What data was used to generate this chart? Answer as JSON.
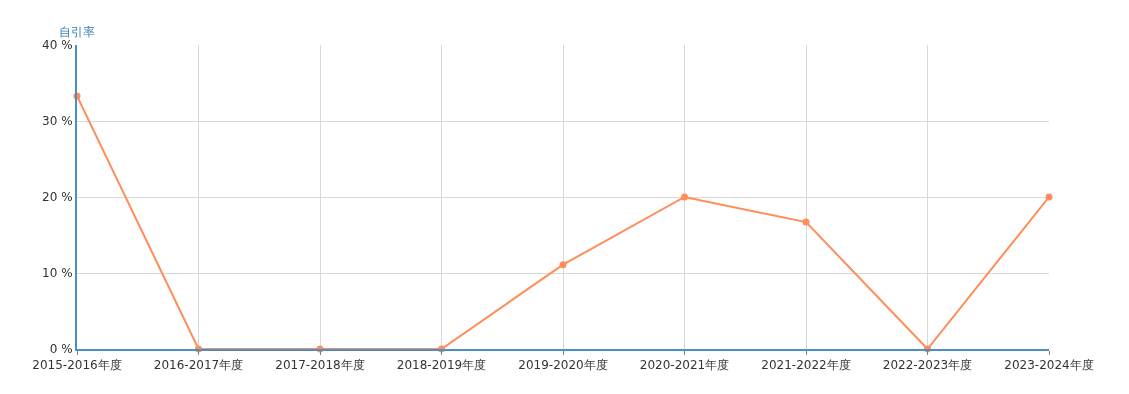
{
  "chart_data": {
    "type": "line",
    "ylabel": "自引率",
    "categories": [
      "2015-2016年度",
      "2016-2017年度",
      "2017-2018年度",
      "2018-2019年度",
      "2019-2020年度",
      "2020-2021年度",
      "2021-2022年度",
      "2022-2023年度",
      "2023-2024年度"
    ],
    "series": [
      {
        "color": "#ff8c5a",
        "values": [
          33.3,
          0,
          0,
          0,
          11.1,
          20,
          16.7,
          0,
          20
        ]
      }
    ],
    "ylim": [
      0,
      40
    ],
    "yticks": [
      {
        "value": 0,
        "label": "0 %"
      },
      {
        "value": 10,
        "label": "10 %"
      },
      {
        "value": 20,
        "label": "20 %"
      },
      {
        "value": 30,
        "label": "30 %"
      },
      {
        "value": 40,
        "label": "40 %"
      }
    ],
    "grid": true,
    "marker": "circle",
    "line_style": "solid"
  }
}
